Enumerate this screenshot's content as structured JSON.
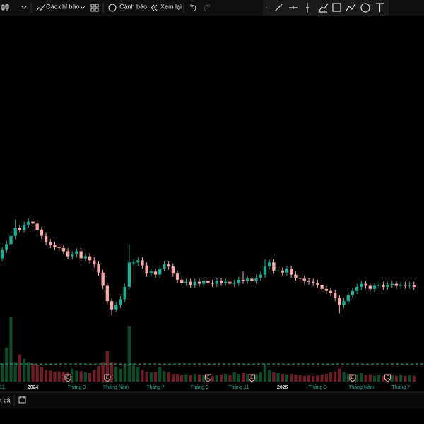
{
  "toolbar": {
    "indicators": "Các chỉ báo",
    "alerts": "Cảnh báo",
    "replay": "Xem lại"
  },
  "bottom_bar": {
    "range": "t cả"
  },
  "chart_data": {
    "type": "candlestick",
    "xlim": [
      -0.5,
      96.3
    ],
    "ylim": [
      20,
      50
    ],
    "volume_ylim": [
      0,
      100
    ],
    "xticks": [
      {
        "value": 0,
        "label": "11"
      },
      {
        "value": 7,
        "label": "2024"
      },
      {
        "value": 17,
        "label": "Tháng 3"
      },
      {
        "value": 26,
        "label": "Tháng Năm"
      },
      {
        "value": 35,
        "label": "Tháng 7"
      },
      {
        "value": 45,
        "label": "Tháng 9"
      },
      {
        "value": 54,
        "label": "Tháng 11"
      },
      {
        "value": 64,
        "label": "2025"
      },
      {
        "value": 72,
        "label": "Tháng 3"
      },
      {
        "value": 82,
        "label": "Tháng Năm"
      },
      {
        "value": 91,
        "label": "Tháng 7"
      }
    ],
    "up_color": "#22ab94",
    "down_color": "#f7a9a7",
    "volume_up_color": "#0f4a2a",
    "volume_down_color": "#6b1f24",
    "volume_avg_color": "#22ab94",
    "open": [
      26.2,
      27.0,
      27.6,
      28.4,
      29.2,
      29.0,
      29.5,
      29.8,
      29.6,
      29.0,
      28.4,
      27.8,
      27.5,
      27.3,
      27.2,
      26.9,
      26.4,
      26.6,
      26.9,
      26.2,
      26.4,
      26.0,
      25.6,
      24.8,
      23.5,
      22.0,
      21.2,
      21.6,
      22.2,
      23.4,
      25.8,
      25.8,
      26.0,
      25.5,
      24.7,
      24.9,
      24.6,
      25.2,
      25.6,
      25.4,
      24.7,
      24.1,
      23.8,
      23.9,
      23.6,
      23.9,
      23.7,
      24.0,
      23.8,
      23.7,
      24.0,
      23.8,
      23.9,
      23.7,
      23.8,
      24.1,
      24.0,
      24.2,
      24.0,
      24.3,
      24.6,
      25.4,
      25.8,
      25.0,
      25.0,
      24.8,
      25.2,
      24.6,
      24.3,
      24.2,
      24.0,
      23.9,
      23.8,
      23.6,
      23.2,
      23.0,
      22.8,
      22.3,
      21.6,
      22.0,
      22.6,
      23.0,
      23.4,
      23.7,
      23.5,
      23.2,
      23.5,
      23.6,
      23.4,
      23.6,
      23.7,
      23.5,
      23.6,
      23.5,
      23.6
    ],
    "high": [
      27.3,
      27.9,
      28.7,
      30.0,
      29.5,
      29.8,
      30.1,
      30.1,
      29.9,
      29.3,
      28.7,
      28.1,
      27.8,
      27.6,
      27.5,
      27.2,
      26.9,
      27.2,
      27.2,
      26.7,
      26.7,
      26.3,
      25.9,
      25.1,
      23.8,
      22.3,
      21.9,
      22.5,
      23.7,
      27.6,
      26.1,
      26.3,
      26.3,
      25.8,
      25.2,
      25.2,
      25.5,
      25.9,
      25.9,
      25.7,
      25.0,
      24.4,
      24.2,
      24.2,
      24.2,
      24.2,
      24.3,
      24.3,
      24.1,
      24.3,
      24.3,
      24.2,
      24.2,
      24.1,
      24.4,
      24.9,
      24.5,
      24.5,
      24.6,
      24.9,
      26.1,
      26.1,
      26.1,
      25.3,
      25.3,
      25.5,
      25.5,
      24.9,
      24.6,
      24.5,
      24.3,
      24.2,
      24.1,
      23.9,
      23.5,
      23.3,
      23.1,
      22.6,
      22.3,
      22.9,
      23.3,
      23.7,
      24.0,
      24.0,
      23.8,
      23.8,
      23.9,
      23.9,
      23.9,
      24.0,
      24.0,
      23.9,
      23.9,
      23.9,
      23.9
    ],
    "low": [
      25.9,
      26.7,
      27.3,
      28.1,
      28.7,
      28.7,
      29.2,
      29.3,
      28.7,
      28.1,
      27.5,
      27.2,
      27.0,
      26.9,
      26.6,
      26.1,
      26.1,
      26.3,
      25.9,
      25.9,
      25.7,
      25.3,
      24.5,
      23.2,
      21.7,
      20.6,
      20.9,
      21.3,
      21.9,
      23.1,
      25.5,
      25.5,
      25.2,
      24.4,
      24.4,
      24.3,
      24.3,
      24.9,
      25.1,
      24.4,
      23.8,
      23.5,
      23.5,
      23.3,
      23.3,
      23.4,
      23.4,
      23.5,
      23.4,
      23.4,
      23.5,
      23.5,
      23.4,
      23.4,
      23.5,
      23.7,
      23.7,
      23.7,
      23.7,
      24.0,
      24.3,
      25.1,
      24.7,
      24.7,
      24.5,
      24.5,
      24.3,
      24.0,
      23.9,
      23.7,
      23.6,
      23.5,
      23.3,
      22.9,
      22.7,
      22.5,
      22.0,
      20.8,
      21.3,
      21.7,
      22.3,
      22.7,
      23.1,
      23.2,
      22.9,
      22.9,
      23.2,
      23.1,
      23.1,
      23.3,
      23.2,
      23.2,
      23.2,
      23.2,
      23.1
    ],
    "close": [
      27.0,
      27.6,
      28.4,
      29.2,
      29.0,
      29.5,
      29.8,
      29.6,
      29.0,
      28.4,
      27.8,
      27.5,
      27.3,
      27.2,
      26.9,
      26.4,
      26.6,
      26.9,
      26.2,
      26.4,
      26.0,
      25.6,
      24.8,
      23.5,
      22.0,
      21.2,
      21.6,
      22.2,
      23.4,
      25.8,
      25.8,
      26.0,
      25.5,
      24.7,
      24.9,
      24.6,
      25.2,
      25.6,
      25.4,
      24.7,
      24.1,
      23.8,
      23.9,
      23.6,
      23.9,
      23.7,
      24.0,
      23.8,
      23.7,
      24.0,
      23.8,
      23.9,
      23.7,
      23.8,
      24.1,
      24.0,
      24.2,
      24.0,
      24.3,
      24.6,
      25.4,
      25.8,
      25.0,
      25.0,
      24.8,
      25.2,
      24.6,
      24.3,
      24.2,
      24.0,
      23.9,
      23.8,
      23.6,
      23.2,
      23.0,
      22.8,
      22.3,
      21.6,
      22.0,
      22.6,
      23.0,
      23.4,
      23.7,
      23.5,
      23.2,
      23.5,
      23.6,
      23.4,
      23.6,
      23.7,
      23.5,
      23.6,
      23.5,
      23.6,
      23.4
    ],
    "volume": [
      28,
      52,
      100,
      30,
      42,
      35,
      30,
      28,
      25,
      22,
      18,
      17,
      15,
      16,
      15,
      14,
      20,
      17,
      16,
      14,
      13,
      18,
      24,
      30,
      48,
      30,
      22,
      20,
      25,
      85,
      28,
      22,
      18,
      15,
      14,
      15,
      22,
      16,
      14,
      12,
      12,
      10,
      11,
      10,
      12,
      11,
      10,
      11,
      9,
      10,
      11,
      12,
      10,
      14,
      12,
      13,
      12,
      10,
      11,
      14,
      27,
      18,
      14,
      13,
      12,
      11,
      12,
      11,
      10,
      9,
      10,
      9,
      10,
      11,
      12,
      14,
      15,
      20,
      14,
      12,
      10,
      11,
      13,
      10,
      11,
      9,
      10,
      9,
      10,
      10,
      9,
      10,
      9,
      10,
      9
    ],
    "volume_avg": 27,
    "earnings": {
      "label": "E",
      "at": [
        15,
        24,
        47,
        57,
        80,
        88
      ]
    }
  }
}
